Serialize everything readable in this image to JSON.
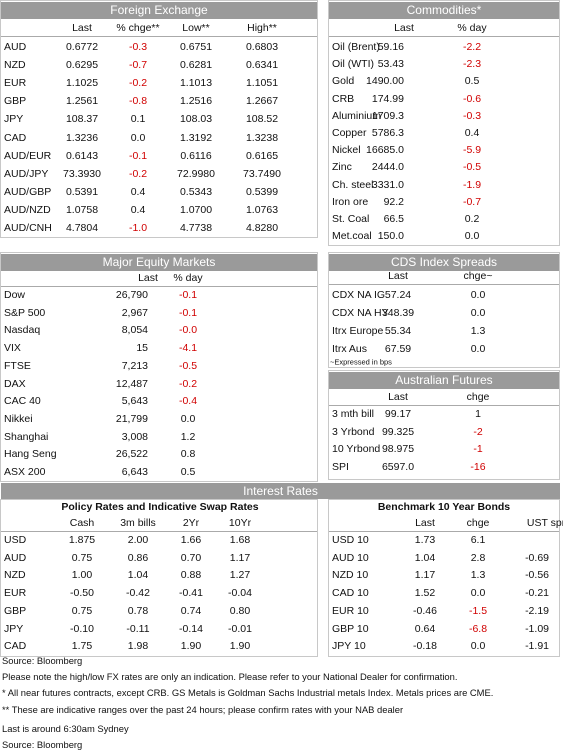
{
  "foreign_exchange": {
    "title": "Foreign Exchange",
    "columns": [
      "Last",
      "% chge**",
      "Low**",
      "High**"
    ],
    "rows": [
      [
        "AUD",
        "0.6772",
        "-0.3",
        "0.6751",
        "0.6803"
      ],
      [
        "NZD",
        "0.6295",
        "-0.7",
        "0.6281",
        "0.6341"
      ],
      [
        "EUR",
        "1.1025",
        "-0.2",
        "1.1013",
        "1.1051"
      ],
      [
        "GBP",
        "1.2561",
        "-0.8",
        "1.2516",
        "1.2667"
      ],
      [
        "JPY",
        "108.37",
        "0.1",
        "108.03",
        "108.52"
      ],
      [
        "CAD",
        "1.3236",
        "0.0",
        "1.3192",
        "1.3238"
      ],
      [
        "AUD/EUR",
        "0.6143",
        "-0.1",
        "0.6116",
        "0.6165"
      ],
      [
        "AUD/JPY",
        "73.3930",
        "-0.2",
        "72.9980",
        "73.7490"
      ],
      [
        "AUD/GBP",
        "0.5391",
        "0.4",
        "0.5343",
        "0.5399"
      ],
      [
        "AUD/NZD",
        "1.0758",
        "0.4",
        "1.0700",
        "1.0763"
      ],
      [
        "AUD/CNH",
        "4.7804",
        "-1.0",
        "4.7738",
        "4.8280"
      ]
    ]
  },
  "commodities": {
    "title": "Commodities*",
    "columns": [
      "Last",
      "% day"
    ],
    "rows": [
      [
        "Oil (Brent)",
        "59.16",
        "-2.2"
      ],
      [
        "Oil (WTI)",
        "53.43",
        "-2.3"
      ],
      [
        "Gold",
        "1490.00",
        "0.5"
      ],
      [
        "CRB",
        "174.99",
        "-0.6"
      ],
      [
        "Aluminium",
        "1709.3",
        "-0.3"
      ],
      [
        "Copper",
        "5786.3",
        "0.4"
      ],
      [
        "Nickel",
        "16685.0",
        "-5.9"
      ],
      [
        "Zinc",
        "2444.0",
        "-0.5"
      ],
      [
        "Ch. steel",
        "3331.0",
        "-1.9"
      ],
      [
        "Iron ore",
        "92.2",
        "-0.7"
      ],
      [
        "St. Coal",
        "66.5",
        "0.2"
      ],
      [
        "Met.coal",
        "150.0",
        "0.0"
      ]
    ]
  },
  "equity_markets": {
    "title": "Major Equity Markets",
    "columns": [
      "Last",
      "% day"
    ],
    "rows": [
      [
        "Dow",
        "26,790",
        "-0.1"
      ],
      [
        "S&P 500",
        "2,967",
        "-0.1"
      ],
      [
        "Nasdaq",
        "8,054",
        "-0.0"
      ],
      [
        "VIX",
        "15",
        "-4.1"
      ],
      [
        "FTSE",
        "7,213",
        "-0.5"
      ],
      [
        "DAX",
        "12,487",
        "-0.2"
      ],
      [
        "CAC 40",
        "5,643",
        "-0.4"
      ],
      [
        "Nikkei",
        "21,799",
        "0.0"
      ],
      [
        "Shanghai",
        "3,008",
        "1.2"
      ],
      [
        "Hang Seng",
        "26,522",
        "0.8"
      ],
      [
        "ASX 200",
        "6,643",
        "0.5"
      ]
    ]
  },
  "cds_spreads": {
    "title": "CDS Index Spreads",
    "columns": [
      "Last",
      "chge~"
    ],
    "rows": [
      [
        "CDX NA IG",
        "57.24",
        "0.0"
      ],
      [
        "CDX NA HY",
        "348.39",
        "0.0"
      ],
      [
        "Itrx Europe",
        "55.34",
        "1.3"
      ],
      [
        "Itrx Aus",
        "67.59",
        "0.0"
      ]
    ],
    "note": "~Expressed in bps"
  },
  "australian_futures": {
    "title": "Australian Futures",
    "columns": [
      "Last",
      "chge"
    ],
    "rows": [
      [
        "3 mth bill",
        "99.17",
        "1"
      ],
      [
        "3 Yrbond",
        "99.325",
        "-2"
      ],
      [
        "10 Yrbond",
        "98.975",
        "-1"
      ],
      [
        "SPI",
        "6597.0",
        "-16"
      ]
    ]
  },
  "interest_rates": {
    "title": "Interest Rates",
    "policy_rates": {
      "title": "Policy Rates and Indicative Swap Rates",
      "columns": [
        "Cash",
        "3m bills",
        "2Yr",
        "10Yr"
      ],
      "rows": [
        [
          "USD",
          "1.875",
          "2.00",
          "1.66",
          "1.68"
        ],
        [
          "AUD",
          "0.75",
          "0.86",
          "0.70",
          "1.17"
        ],
        [
          "NZD",
          "1.00",
          "1.04",
          "0.88",
          "1.27"
        ],
        [
          "EUR",
          "-0.50",
          "-0.42",
          "-0.41",
          "-0.04"
        ],
        [
          "GBP",
          "0.75",
          "0.78",
          "0.74",
          "0.80"
        ],
        [
          "JPY",
          "-0.10",
          "-0.11",
          "-0.14",
          "-0.01"
        ],
        [
          "CAD",
          "1.75",
          "1.98",
          "1.90",
          "1.90"
        ]
      ]
    },
    "benchmark_bonds": {
      "title": "Benchmark 10 Year Bonds",
      "columns": [
        "Last",
        "chge",
        "UST sprd"
      ],
      "rows": [
        [
          "USD 10",
          "1.73",
          "6.1"
        ],
        [
          "AUD 10",
          "1.04",
          "2.8",
          "-0.69"
        ],
        [
          "NZD 10",
          "1.17",
          "1.3",
          "-0.56"
        ],
        [
          "CAD 10",
          "1.52",
          "0.0",
          "-0.21"
        ],
        [
          "EUR 10",
          "-0.46",
          "-1.5",
          "-2.19"
        ],
        [
          "GBP 10",
          "0.64",
          "-6.8",
          "-1.09"
        ],
        [
          "JPY 10",
          "-0.18",
          "0.0",
          "-1.91"
        ]
      ]
    }
  },
  "footer": [
    "Source: Bloomberg",
    "Please note the high/low FX rates are only an indication. Please refer to your National Dealer for confirmation.",
    "* All near futures contracts, except CRB. GS Metals is Goldman Sachs Industrial metals Index. Metals prices are CME.",
    "** These are indicative ranges over the past 24 hours; please confirm rates with your NAB dealer",
    "Last is around 6:30am Sydney",
    "Source: Bloomberg"
  ]
}
